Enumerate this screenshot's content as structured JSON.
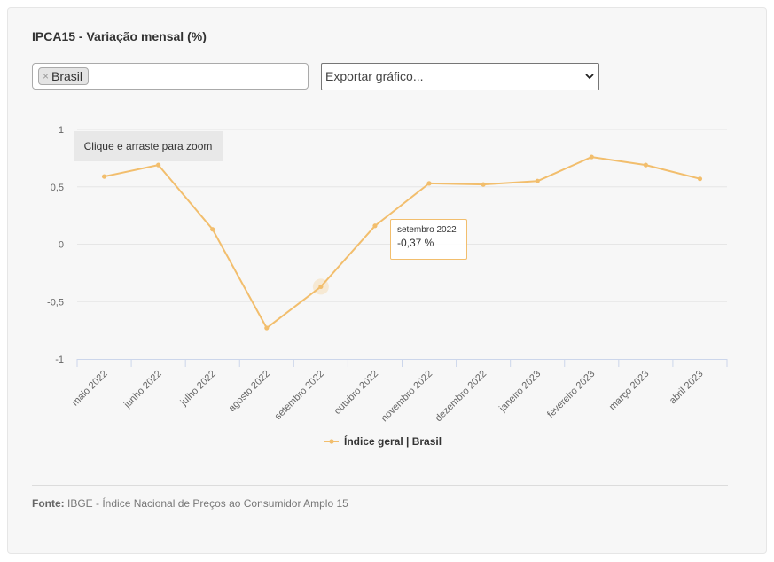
{
  "header": {
    "title": "IPCA15 - Variação mensal (%)"
  },
  "filter": {
    "tag_label": "Brasil",
    "remove_symbol": "×"
  },
  "export_select": {
    "selected": "Exportar gráfico..."
  },
  "zoom_hint": "Clique e arraste para zoom",
  "tooltip": {
    "category": "setembro 2022",
    "value": "-0,37 %"
  },
  "footer": {
    "source_label": "Fonte:",
    "source_text": "IBGE - Índice Nacional de Preços ao Consumidor Amplo 15"
  },
  "colors": {
    "series": "#f2be6d",
    "grid": "#e6e6e6",
    "axis": "#ccd6eb"
  },
  "chart_data": {
    "type": "line",
    "title": "IPCA15 - Variação mensal (%)",
    "categories": [
      "maio 2022",
      "junho 2022",
      "julho 2022",
      "agosto 2022",
      "setembro 2022",
      "outubro 2022",
      "novembro 2022",
      "dezembro 2022",
      "janeiro 2023",
      "fevereiro 2023",
      "março 2023",
      "abril 2023"
    ],
    "series": [
      {
        "name": "Índice geral | Brasil",
        "values": [
          0.59,
          0.69,
          0.13,
          -0.73,
          -0.37,
          0.16,
          0.53,
          0.52,
          0.55,
          0.76,
          0.69,
          0.57
        ]
      }
    ],
    "yticks": [
      "1",
      "0,5",
      "0",
      "-0,5",
      "-1"
    ],
    "ylim": [
      -1,
      1
    ],
    "highlight_index": 4,
    "legend": "bottom-center",
    "grid": true
  }
}
